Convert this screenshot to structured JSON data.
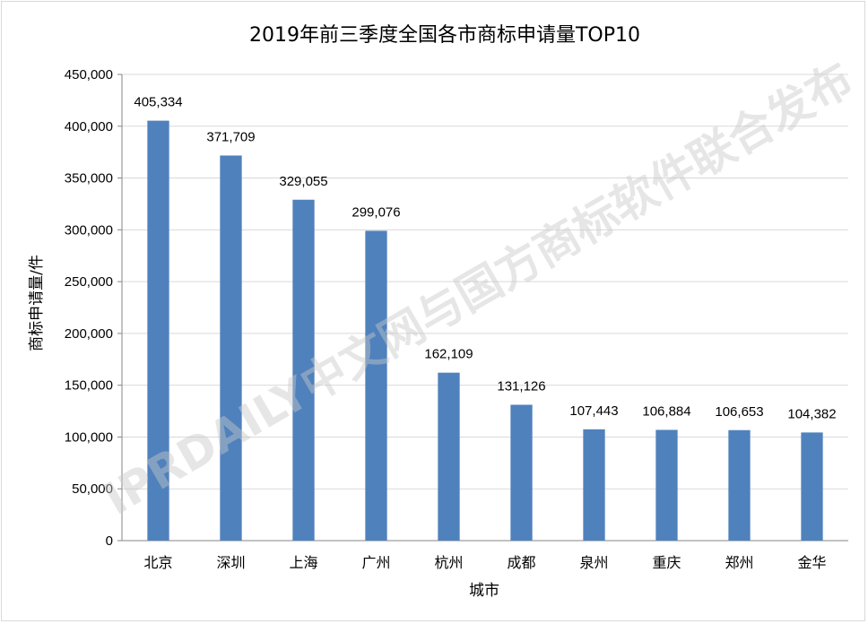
{
  "chart_data": {
    "type": "bar",
    "title": "2019年前三季度全国各市商标申请量TOP10",
    "xlabel": "城市",
    "ylabel": "商标申请量/件",
    "categories": [
      "北京",
      "深圳",
      "上海",
      "广州",
      "杭州",
      "成都",
      "泉州",
      "重庆",
      "郑州",
      "金华"
    ],
    "values": [
      405334,
      371709,
      329055,
      299076,
      162109,
      131126,
      107443,
      106884,
      106653,
      104382
    ],
    "value_labels": [
      "405,334",
      "371,709",
      "329,055",
      "299,076",
      "162,109",
      "131,126",
      "107,443",
      "106,884",
      "106,653",
      "104,382"
    ],
    "ylim": [
      0,
      450000
    ],
    "yticks": [
      0,
      50000,
      100000,
      150000,
      200000,
      250000,
      300000,
      350000,
      400000,
      450000
    ],
    "ytick_labels": [
      "0",
      "50,000",
      "100,000",
      "150,000",
      "200,000",
      "250,000",
      "300,000",
      "350,000",
      "400,000",
      "450,000"
    ],
    "grid": true,
    "legend": "none",
    "bar_color": "#4f81bd",
    "grid_color": "#d9d9d9"
  },
  "watermark": "IPRDAILY中文网与国方商标软件联合发布"
}
